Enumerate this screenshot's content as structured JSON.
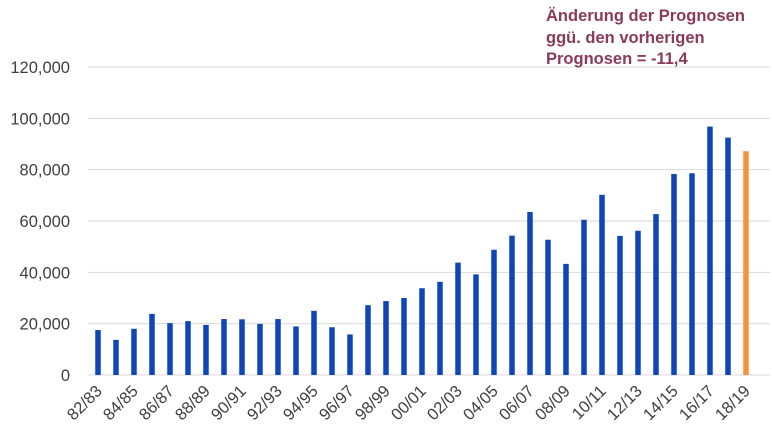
{
  "chart_data": {
    "type": "bar",
    "categories": [
      "82/83",
      "83/84",
      "84/85",
      "85/86",
      "86/87",
      "87/88",
      "88/89",
      "89/90",
      "90/91",
      "91/92",
      "92/93",
      "93/94",
      "94/95",
      "95/96",
      "96/97",
      "97/98",
      "98/99",
      "99/00",
      "00/01",
      "01/02",
      "02/03",
      "03/04",
      "04/05",
      "05/06",
      "06/07",
      "07/08",
      "08/09",
      "09/10",
      "10/11",
      "11/12",
      "12/13",
      "13/14",
      "14/15",
      "15/16",
      "16/17",
      "17/18",
      "18/19"
    ],
    "x_tick_labels": [
      "82/83",
      "84/85",
      "86/87",
      "88/89",
      "90/91",
      "92/93",
      "94/95",
      "96/97",
      "98/99",
      "00/01",
      "02/03",
      "04/05",
      "06/07",
      "08/09",
      "10/11",
      "12/13",
      "14/15",
      "16/17",
      "18/19"
    ],
    "values": [
      17500,
      13700,
      18000,
      23800,
      20200,
      21000,
      19500,
      21800,
      21700,
      19900,
      21800,
      18900,
      25000,
      18600,
      15800,
      27200,
      28800,
      30000,
      33800,
      36300,
      43800,
      39200,
      48800,
      54300,
      63500,
      52700,
      43300,
      60500,
      70200,
      54200,
      56200,
      62700,
      78300,
      78600,
      96800,
      92500,
      87200
    ],
    "highlight_index": 36,
    "colors": {
      "bar": "#0e45b9",
      "highlight": "#f5923e",
      "grid": "#d9d9d9",
      "annotation": "#8b3a57"
    },
    "yticks": [
      "0",
      "20,000",
      "40,000",
      "60,000",
      "80,000",
      "100,000",
      "120,000"
    ],
    "ylim": [
      0,
      120000
    ],
    "grid": true,
    "title": "",
    "xlabel": "",
    "ylabel": ""
  },
  "annotation": {
    "line1": "Änderung der Prognosen",
    "line2": "ggü. den vorherigen",
    "line3": "Prognosen = -11,4"
  }
}
